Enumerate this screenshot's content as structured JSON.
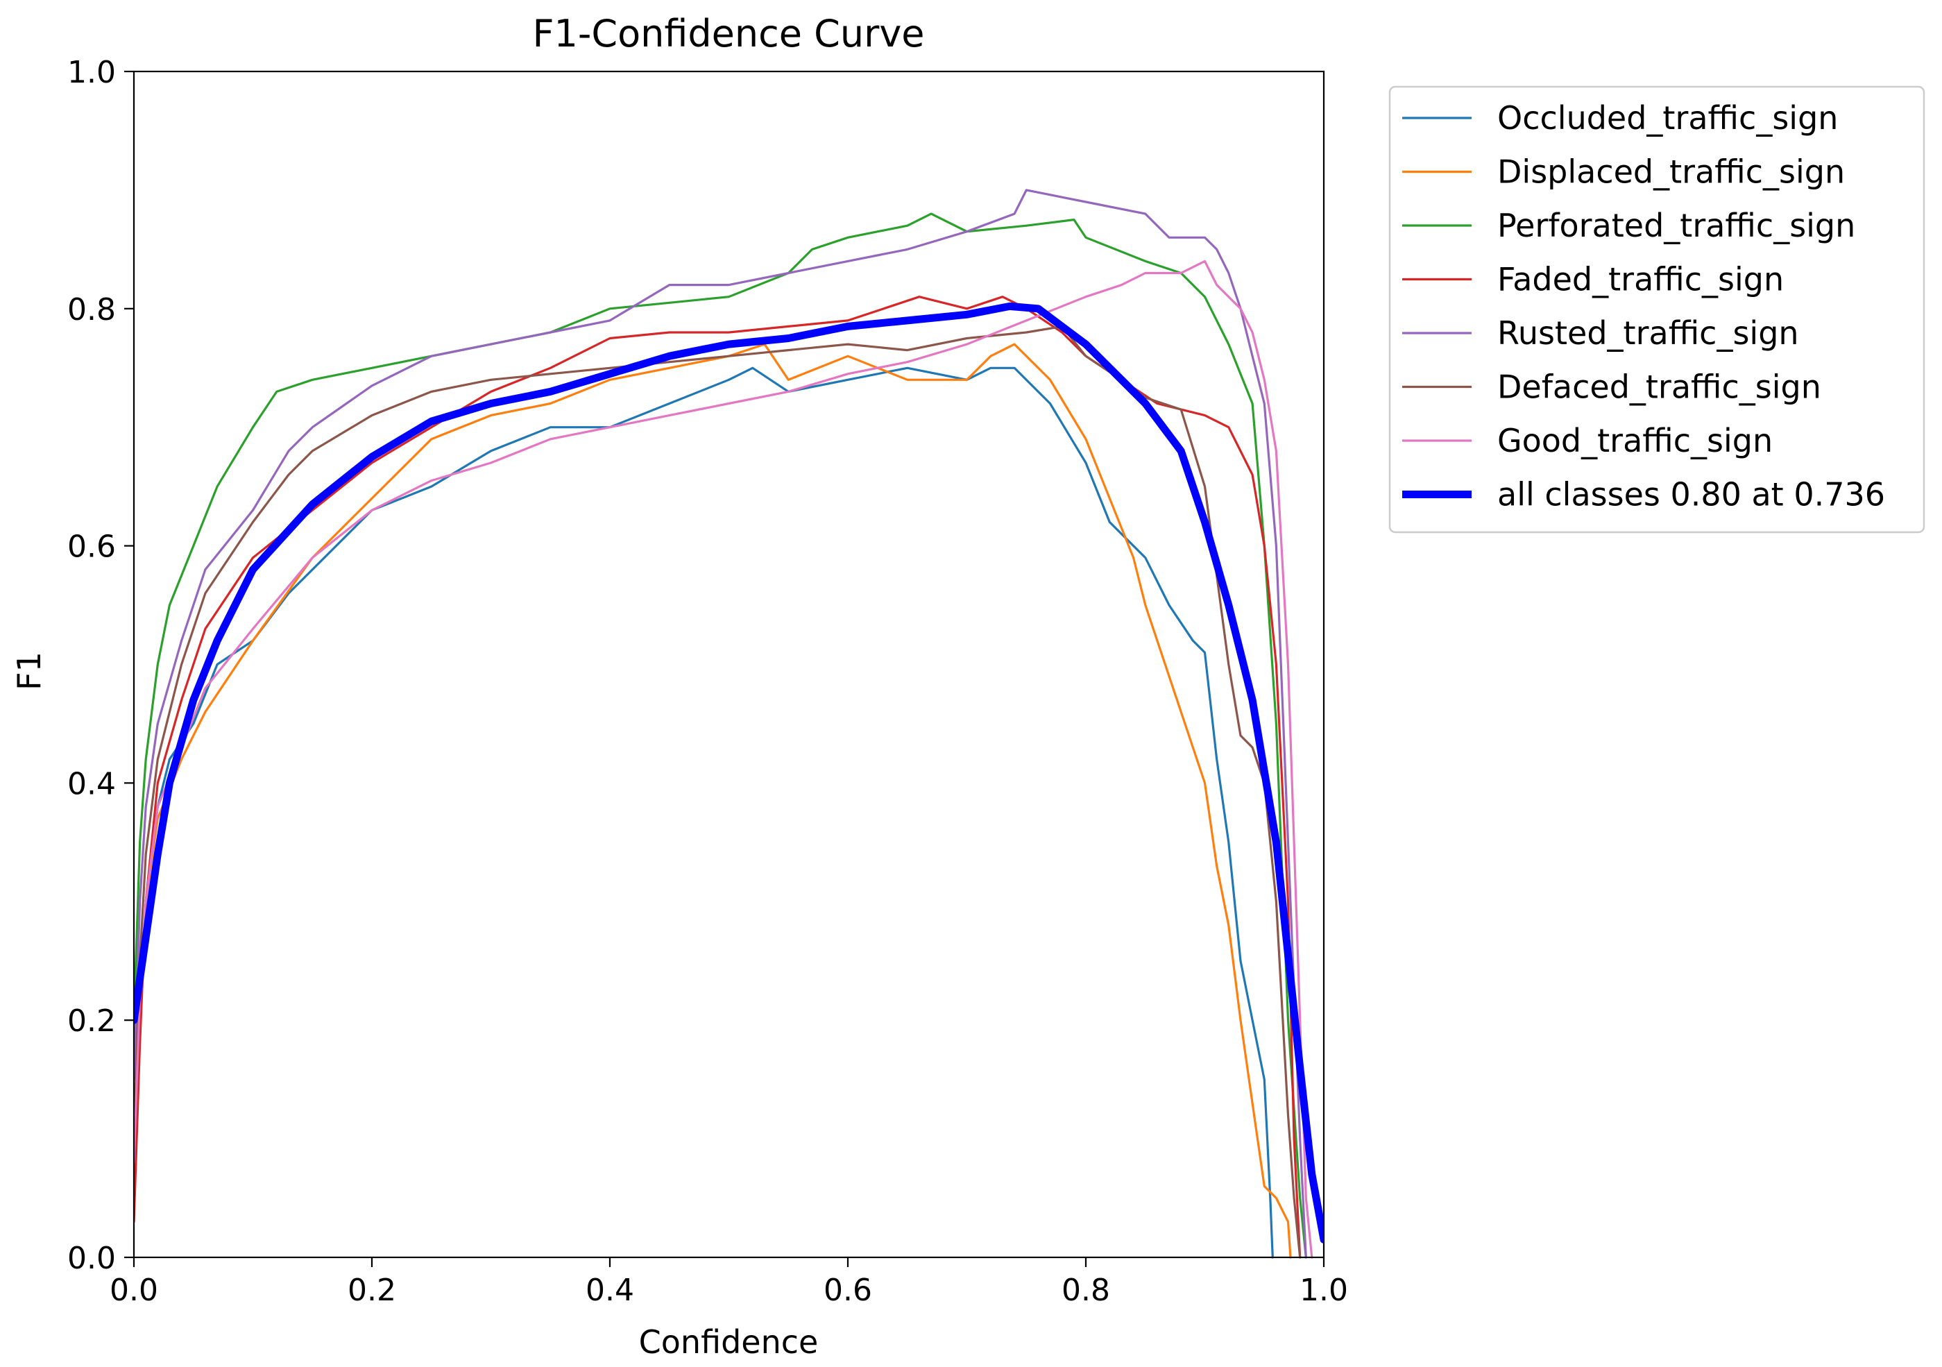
{
  "chart_data": {
    "type": "line",
    "title": "F1-Confidence Curve",
    "xlabel": "Confidence",
    "ylabel": "F1",
    "xlim": [
      0.0,
      1.0
    ],
    "ylim": [
      0.0,
      1.0
    ],
    "grid": false,
    "legend_position": "outside-top-right",
    "x_ticks": [
      0.0,
      0.2,
      0.4,
      0.6,
      0.8,
      1.0
    ],
    "y_ticks": [
      0.0,
      0.2,
      0.4,
      0.6,
      0.8,
      1.0
    ],
    "x_tick_labels": [
      "0.0",
      "0.2",
      "0.4",
      "0.6",
      "0.8",
      "1.0"
    ],
    "y_tick_labels": [
      "0.0",
      "0.2",
      "0.4",
      "0.6",
      "0.8",
      "1.0"
    ],
    "series": [
      {
        "name": "Occluded_traffic_sign",
        "color": "#1f77b4",
        "width": "thin",
        "points": [
          [
            0.0,
            0.05
          ],
          [
            0.005,
            0.2
          ],
          [
            0.01,
            0.3
          ],
          [
            0.02,
            0.38
          ],
          [
            0.03,
            0.42
          ],
          [
            0.05,
            0.45
          ],
          [
            0.07,
            0.5
          ],
          [
            0.1,
            0.52
          ],
          [
            0.13,
            0.56
          ],
          [
            0.16,
            0.59
          ],
          [
            0.2,
            0.63
          ],
          [
            0.25,
            0.65
          ],
          [
            0.3,
            0.68
          ],
          [
            0.35,
            0.7
          ],
          [
            0.4,
            0.7
          ],
          [
            0.45,
            0.72
          ],
          [
            0.5,
            0.74
          ],
          [
            0.52,
            0.75
          ],
          [
            0.55,
            0.73
          ],
          [
            0.6,
            0.74
          ],
          [
            0.65,
            0.75
          ],
          [
            0.7,
            0.74
          ],
          [
            0.72,
            0.75
          ],
          [
            0.74,
            0.75
          ],
          [
            0.77,
            0.72
          ],
          [
            0.8,
            0.67
          ],
          [
            0.82,
            0.62
          ],
          [
            0.85,
            0.59
          ],
          [
            0.87,
            0.55
          ],
          [
            0.89,
            0.52
          ],
          [
            0.9,
            0.51
          ],
          [
            0.91,
            0.42
          ],
          [
            0.92,
            0.35
          ],
          [
            0.93,
            0.25
          ],
          [
            0.94,
            0.2
          ],
          [
            0.95,
            0.15
          ],
          [
            0.955,
            0.05
          ],
          [
            0.957,
            0.0
          ]
        ]
      },
      {
        "name": "Displaced_traffic_sign",
        "color": "#ff7f0e",
        "width": "thin",
        "points": [
          [
            0.0,
            0.05
          ],
          [
            0.005,
            0.2
          ],
          [
            0.01,
            0.3
          ],
          [
            0.02,
            0.37
          ],
          [
            0.04,
            0.42
          ],
          [
            0.06,
            0.46
          ],
          [
            0.1,
            0.52
          ],
          [
            0.15,
            0.59
          ],
          [
            0.2,
            0.64
          ],
          [
            0.25,
            0.69
          ],
          [
            0.3,
            0.71
          ],
          [
            0.35,
            0.72
          ],
          [
            0.4,
            0.74
          ],
          [
            0.45,
            0.75
          ],
          [
            0.5,
            0.76
          ],
          [
            0.53,
            0.77
          ],
          [
            0.55,
            0.74
          ],
          [
            0.6,
            0.76
          ],
          [
            0.65,
            0.74
          ],
          [
            0.7,
            0.74
          ],
          [
            0.72,
            0.76
          ],
          [
            0.74,
            0.77
          ],
          [
            0.77,
            0.74
          ],
          [
            0.8,
            0.69
          ],
          [
            0.82,
            0.64
          ],
          [
            0.84,
            0.59
          ],
          [
            0.85,
            0.55
          ],
          [
            0.86,
            0.52
          ],
          [
            0.88,
            0.46
          ],
          [
            0.9,
            0.4
          ],
          [
            0.91,
            0.33
          ],
          [
            0.92,
            0.28
          ],
          [
            0.93,
            0.2
          ],
          [
            0.94,
            0.13
          ],
          [
            0.95,
            0.06
          ],
          [
            0.96,
            0.05
          ],
          [
            0.97,
            0.03
          ],
          [
            0.972,
            0.0
          ]
        ]
      },
      {
        "name": "Perforated_traffic_sign",
        "color": "#2ca02c",
        "width": "thin",
        "points": [
          [
            0.0,
            0.2
          ],
          [
            0.005,
            0.35
          ],
          [
            0.01,
            0.42
          ],
          [
            0.02,
            0.5
          ],
          [
            0.03,
            0.55
          ],
          [
            0.05,
            0.6
          ],
          [
            0.07,
            0.65
          ],
          [
            0.1,
            0.7
          ],
          [
            0.12,
            0.73
          ],
          [
            0.15,
            0.74
          ],
          [
            0.2,
            0.75
          ],
          [
            0.25,
            0.76
          ],
          [
            0.3,
            0.77
          ],
          [
            0.35,
            0.78
          ],
          [
            0.4,
            0.8
          ],
          [
            0.45,
            0.805
          ],
          [
            0.5,
            0.81
          ],
          [
            0.55,
            0.83
          ],
          [
            0.57,
            0.85
          ],
          [
            0.6,
            0.86
          ],
          [
            0.65,
            0.87
          ],
          [
            0.67,
            0.88
          ],
          [
            0.7,
            0.865
          ],
          [
            0.75,
            0.87
          ],
          [
            0.79,
            0.875
          ],
          [
            0.8,
            0.86
          ],
          [
            0.85,
            0.84
          ],
          [
            0.88,
            0.83
          ],
          [
            0.9,
            0.81
          ],
          [
            0.92,
            0.77
          ],
          [
            0.94,
            0.72
          ],
          [
            0.95,
            0.6
          ],
          [
            0.96,
            0.45
          ],
          [
            0.97,
            0.2
          ],
          [
            0.98,
            0.05
          ],
          [
            0.985,
            0.0
          ]
        ]
      },
      {
        "name": "Faded_traffic_sign",
        "color": "#d62728",
        "width": "thin",
        "points": [
          [
            0.0,
            0.03
          ],
          [
            0.005,
            0.18
          ],
          [
            0.01,
            0.3
          ],
          [
            0.02,
            0.4
          ],
          [
            0.04,
            0.47
          ],
          [
            0.06,
            0.53
          ],
          [
            0.1,
            0.59
          ],
          [
            0.15,
            0.63
          ],
          [
            0.2,
            0.67
          ],
          [
            0.25,
            0.7
          ],
          [
            0.3,
            0.73
          ],
          [
            0.35,
            0.75
          ],
          [
            0.4,
            0.775
          ],
          [
            0.45,
            0.78
          ],
          [
            0.5,
            0.78
          ],
          [
            0.55,
            0.785
          ],
          [
            0.6,
            0.79
          ],
          [
            0.63,
            0.8
          ],
          [
            0.66,
            0.81
          ],
          [
            0.7,
            0.8
          ],
          [
            0.73,
            0.81
          ],
          [
            0.75,
            0.8
          ],
          [
            0.78,
            0.78
          ],
          [
            0.8,
            0.76
          ],
          [
            0.83,
            0.74
          ],
          [
            0.86,
            0.72
          ],
          [
            0.9,
            0.71
          ],
          [
            0.92,
            0.7
          ],
          [
            0.94,
            0.66
          ],
          [
            0.95,
            0.6
          ],
          [
            0.96,
            0.5
          ],
          [
            0.97,
            0.3
          ],
          [
            0.975,
            0.1
          ],
          [
            0.98,
            0.0
          ]
        ]
      },
      {
        "name": "Rusted_traffic_sign",
        "color": "#9467bd",
        "width": "thin",
        "points": [
          [
            0.0,
            0.15
          ],
          [
            0.005,
            0.3
          ],
          [
            0.01,
            0.38
          ],
          [
            0.02,
            0.45
          ],
          [
            0.04,
            0.52
          ],
          [
            0.06,
            0.58
          ],
          [
            0.1,
            0.63
          ],
          [
            0.13,
            0.68
          ],
          [
            0.15,
            0.7
          ],
          [
            0.2,
            0.735
          ],
          [
            0.25,
            0.76
          ],
          [
            0.3,
            0.77
          ],
          [
            0.35,
            0.78
          ],
          [
            0.4,
            0.79
          ],
          [
            0.45,
            0.82
          ],
          [
            0.5,
            0.82
          ],
          [
            0.55,
            0.83
          ],
          [
            0.6,
            0.84
          ],
          [
            0.65,
            0.85
          ],
          [
            0.7,
            0.865
          ],
          [
            0.74,
            0.88
          ],
          [
            0.75,
            0.9
          ],
          [
            0.8,
            0.89
          ],
          [
            0.85,
            0.88
          ],
          [
            0.87,
            0.86
          ],
          [
            0.9,
            0.86
          ],
          [
            0.91,
            0.85
          ],
          [
            0.92,
            0.83
          ],
          [
            0.93,
            0.8
          ],
          [
            0.94,
            0.76
          ],
          [
            0.95,
            0.72
          ],
          [
            0.96,
            0.6
          ],
          [
            0.97,
            0.35
          ],
          [
            0.98,
            0.1
          ],
          [
            0.985,
            0.0
          ]
        ]
      },
      {
        "name": "Defaced_traffic_sign",
        "color": "#8c564b",
        "width": "thin",
        "points": [
          [
            0.0,
            0.1
          ],
          [
            0.005,
            0.25
          ],
          [
            0.01,
            0.34
          ],
          [
            0.02,
            0.42
          ],
          [
            0.04,
            0.5
          ],
          [
            0.06,
            0.56
          ],
          [
            0.1,
            0.62
          ],
          [
            0.13,
            0.66
          ],
          [
            0.15,
            0.68
          ],
          [
            0.2,
            0.71
          ],
          [
            0.25,
            0.73
          ],
          [
            0.3,
            0.74
          ],
          [
            0.35,
            0.745
          ],
          [
            0.4,
            0.75
          ],
          [
            0.45,
            0.755
          ],
          [
            0.5,
            0.76
          ],
          [
            0.55,
            0.765
          ],
          [
            0.6,
            0.77
          ],
          [
            0.65,
            0.765
          ],
          [
            0.7,
            0.775
          ],
          [
            0.75,
            0.78
          ],
          [
            0.78,
            0.785
          ],
          [
            0.8,
            0.76
          ],
          [
            0.83,
            0.74
          ],
          [
            0.85,
            0.725
          ],
          [
            0.88,
            0.715
          ],
          [
            0.9,
            0.65
          ],
          [
            0.92,
            0.5
          ],
          [
            0.93,
            0.44
          ],
          [
            0.94,
            0.43
          ],
          [
            0.95,
            0.4
          ],
          [
            0.96,
            0.3
          ],
          [
            0.97,
            0.12
          ],
          [
            0.975,
            0.05
          ],
          [
            0.98,
            0.0
          ]
        ]
      },
      {
        "name": "Good_traffic_sign",
        "color": "#e377c2",
        "width": "thin",
        "points": [
          [
            0.0,
            0.08
          ],
          [
            0.005,
            0.22
          ],
          [
            0.01,
            0.3
          ],
          [
            0.02,
            0.38
          ],
          [
            0.04,
            0.43
          ],
          [
            0.06,
            0.48
          ],
          [
            0.1,
            0.53
          ],
          [
            0.15,
            0.59
          ],
          [
            0.2,
            0.63
          ],
          [
            0.25,
            0.655
          ],
          [
            0.3,
            0.67
          ],
          [
            0.35,
            0.69
          ],
          [
            0.4,
            0.7
          ],
          [
            0.45,
            0.71
          ],
          [
            0.5,
            0.72
          ],
          [
            0.55,
            0.73
          ],
          [
            0.6,
            0.745
          ],
          [
            0.65,
            0.755
          ],
          [
            0.7,
            0.77
          ],
          [
            0.75,
            0.79
          ],
          [
            0.8,
            0.81
          ],
          [
            0.83,
            0.82
          ],
          [
            0.85,
            0.83
          ],
          [
            0.88,
            0.83
          ],
          [
            0.9,
            0.84
          ],
          [
            0.91,
            0.82
          ],
          [
            0.93,
            0.8
          ],
          [
            0.94,
            0.78
          ],
          [
            0.95,
            0.74
          ],
          [
            0.96,
            0.68
          ],
          [
            0.97,
            0.5
          ],
          [
            0.98,
            0.2
          ],
          [
            0.985,
            0.05
          ],
          [
            0.99,
            0.0
          ]
        ]
      },
      {
        "name": "all classes 0.80 at 0.736",
        "color": "#0000ff",
        "width": "thick",
        "points": [
          [
            0.0,
            0.2
          ],
          [
            0.01,
            0.27
          ],
          [
            0.02,
            0.34
          ],
          [
            0.03,
            0.4
          ],
          [
            0.05,
            0.47
          ],
          [
            0.07,
            0.52
          ],
          [
            0.1,
            0.58
          ],
          [
            0.15,
            0.635
          ],
          [
            0.2,
            0.675
          ],
          [
            0.25,
            0.705
          ],
          [
            0.3,
            0.72
          ],
          [
            0.35,
            0.73
          ],
          [
            0.4,
            0.745
          ],
          [
            0.45,
            0.76
          ],
          [
            0.5,
            0.77
          ],
          [
            0.55,
            0.775
          ],
          [
            0.6,
            0.785
          ],
          [
            0.65,
            0.79
          ],
          [
            0.7,
            0.795
          ],
          [
            0.736,
            0.802
          ],
          [
            0.76,
            0.8
          ],
          [
            0.8,
            0.77
          ],
          [
            0.85,
            0.72
          ],
          [
            0.88,
            0.68
          ],
          [
            0.9,
            0.62
          ],
          [
            0.92,
            0.55
          ],
          [
            0.94,
            0.47
          ],
          [
            0.96,
            0.35
          ],
          [
            0.98,
            0.16
          ],
          [
            0.99,
            0.07
          ],
          [
            1.0,
            0.015
          ]
        ]
      }
    ]
  }
}
